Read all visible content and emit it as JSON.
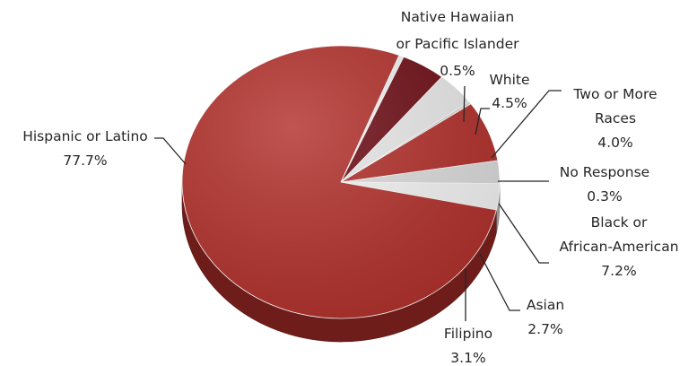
{
  "colors": {
    "main_red": "#b22f2a",
    "dark_red": "#6d0c14",
    "light_gray": "#e6e6e6",
    "mid_gray": "#d2d2d2",
    "white": "#f7f7f7"
  },
  "chart_data": {
    "type": "pie",
    "style": "3d",
    "start_angle_deg": -68.5,
    "slices": [
      {
        "name_lines": [
          "Native Hawaiian",
          "or Pacific Islander"
        ],
        "value_text": "0.5%",
        "value": 0.5,
        "color": "#f2f2f2"
      },
      {
        "name_lines": [
          "White"
        ],
        "value_text": "4.5%",
        "value": 4.5,
        "color": "#6d0c14"
      },
      {
        "name_lines": [
          "Two or More",
          "Races"
        ],
        "value_text": "4.0%",
        "value": 4.0,
        "color": "#e9e9e9"
      },
      {
        "name_lines": [
          "No Response"
        ],
        "value_text": "0.3%",
        "value": 0.3,
        "color": "#d9d9d9"
      },
      {
        "name_lines": [
          "Black or",
          "African-American"
        ],
        "value_text": "7.2%",
        "value": 7.2,
        "color": "#b22f2a"
      },
      {
        "name_lines": [
          "Asian"
        ],
        "value_text": "2.7%",
        "value": 2.7,
        "color": "#dcdcdc"
      },
      {
        "name_lines": [
          "Filipino"
        ],
        "value_text": "3.1%",
        "value": 3.1,
        "color": "#f4f4f4"
      },
      {
        "name_lines": [
          "Hispanic or Latino"
        ],
        "value_text": "77.7%",
        "value": 77.7,
        "color": "#b22f2a"
      }
    ]
  }
}
